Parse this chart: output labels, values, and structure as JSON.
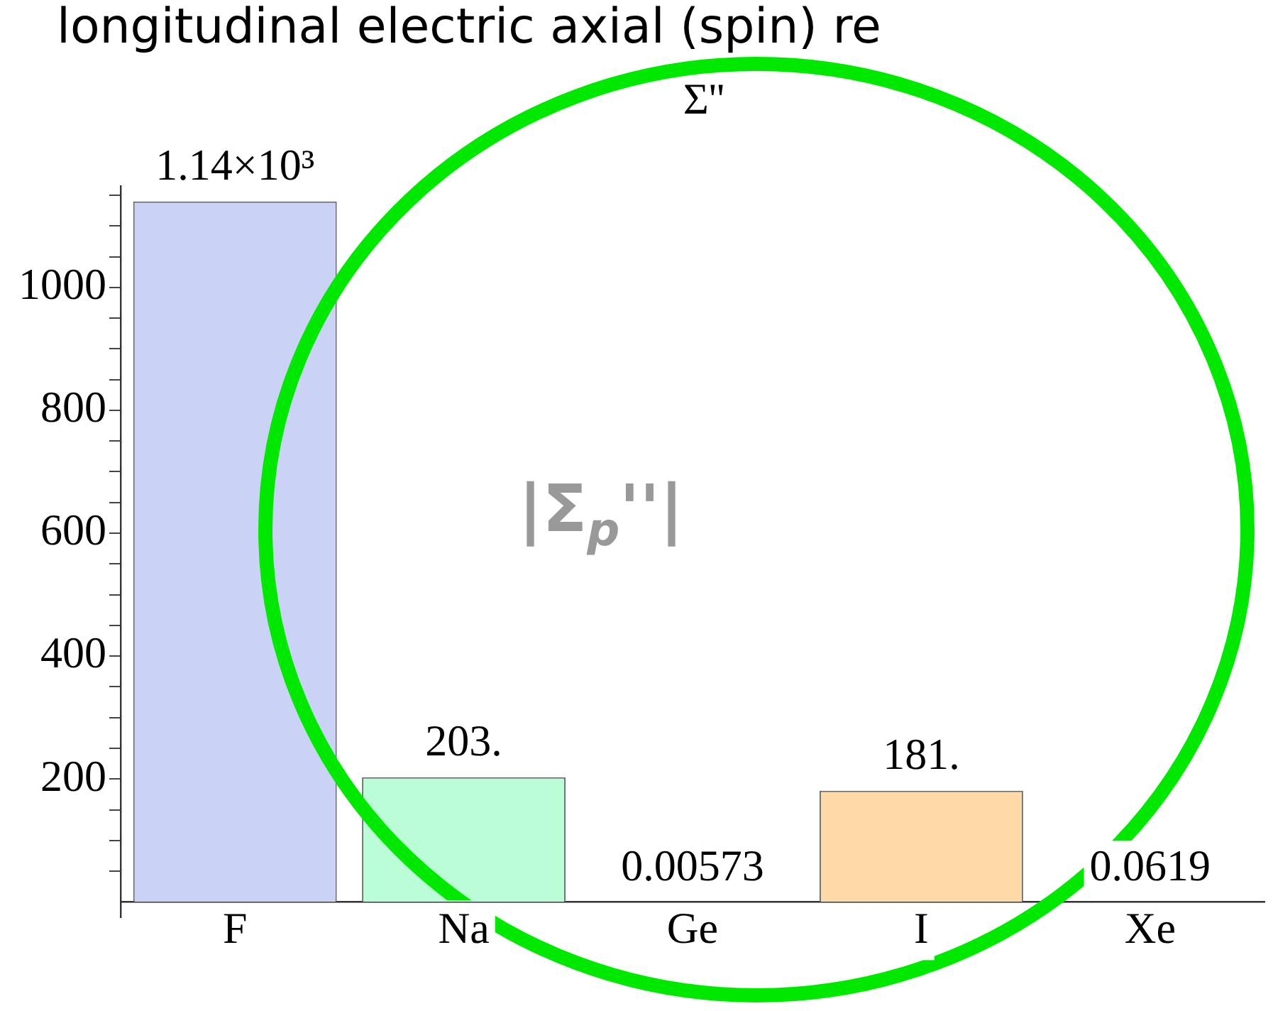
{
  "chart_data": {
    "type": "bar",
    "title": "longitudinal electric axial (spin) re",
    "subtitle": "Σ''",
    "categories": [
      "F",
      "Na",
      "Ge",
      "I",
      "Xe"
    ],
    "values": [
      1140,
      203,
      0.00573,
      181,
      0.0619
    ],
    "value_labels": [
      "1.14×10³",
      "203.",
      "0.00573",
      "181.",
      "0.0619"
    ],
    "colors": [
      "#cad2f5",
      "#bbfdd6",
      "#f6c7d9",
      "#ffdaa8",
      "#d9c9f5"
    ],
    "ylim": [
      -25,
      1165
    ],
    "yticks": [
      {
        "value": 50,
        "label": null
      },
      {
        "value": 100,
        "label": null
      },
      {
        "value": 150,
        "label": null
      },
      200,
      {
        "value": 250,
        "label": null
      },
      {
        "value": 300,
        "label": null
      },
      {
        "value": 350,
        "label": null
      },
      400,
      {
        "value": 450,
        "label": null
      },
      {
        "value": 500,
        "label": null
      },
      {
        "value": 550,
        "label": null
      },
      600,
      {
        "value": 650,
        "label": null
      },
      {
        "value": 700,
        "label": null
      },
      {
        "value": 750,
        "label": null
      },
      800,
      {
        "value": 850,
        "label": null
      },
      {
        "value": 900,
        "label": null
      },
      {
        "value": 950,
        "label": null
      },
      1000,
      {
        "value": 1050,
        "label": null
      },
      {
        "value": 1100,
        "label": null
      },
      {
        "value": 1150,
        "label": null
      }
    ],
    "annotations": [
      "|Σ$_{p}$''|"
    ]
  }
}
